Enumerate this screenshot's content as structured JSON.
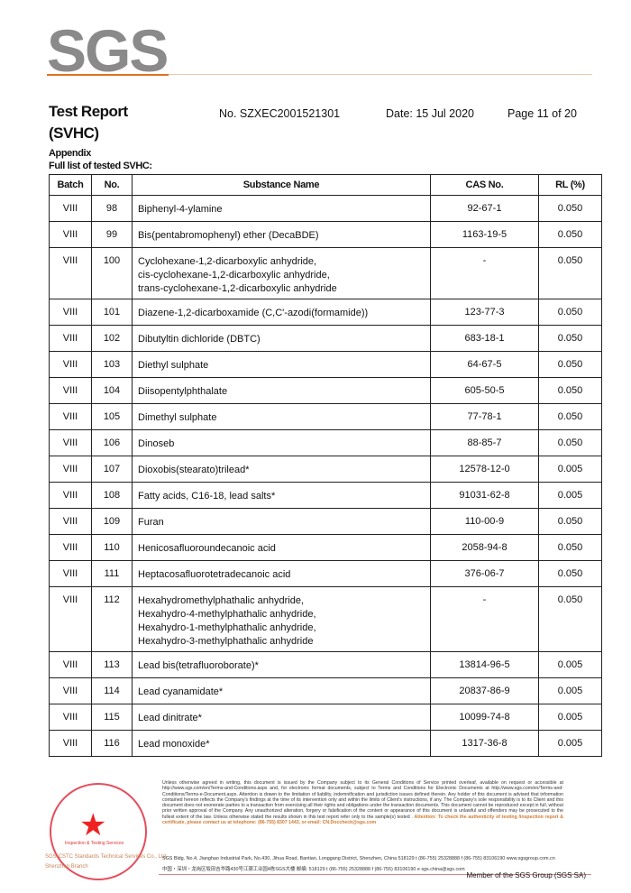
{
  "header": {
    "logo": "SGS",
    "title": "Test Report",
    "subtitle": "(SVHC)",
    "report_no": "No. SZXEC2001521301",
    "date": "Date: 15 Jul 2020",
    "page": "Page 11 of 20",
    "appendix": "Appendix",
    "list_title": "Full list of tested SVHC:"
  },
  "table": {
    "columns": [
      "Batch",
      "No.",
      "Substance Name",
      "CAS No.",
      "RL (%)"
    ],
    "rows": [
      {
        "batch": "VIII",
        "no": "98",
        "name": [
          "Biphenyl-4-ylamine"
        ],
        "cas": "92-67-1",
        "rl": "0.050"
      },
      {
        "batch": "VIII",
        "no": "99",
        "name": [
          "Bis(pentabromophenyl) ether (DecaBDE)"
        ],
        "cas": "1163-19-5",
        "rl": "0.050"
      },
      {
        "batch": "VIII",
        "no": "100",
        "name": [
          "Cyclohexane-1,2-dicarboxylic anhydride,",
          "cis-cyclohexane-1,2-dicarboxylic anhydride,",
          "trans-cyclohexane-1,2-dicarboxylic anhydride"
        ],
        "cas": "-",
        "rl": "0.050"
      },
      {
        "batch": "VIII",
        "no": "101",
        "name": [
          "Diazene-1,2-dicarboxamide (C,C'-azodi(formamide))"
        ],
        "cas": "123-77-3",
        "rl": "0.050"
      },
      {
        "batch": "VIII",
        "no": "102",
        "name": [
          "Dibutyltin dichloride (DBTC)"
        ],
        "cas": "683-18-1",
        "rl": "0.050"
      },
      {
        "batch": "VIII",
        "no": "103",
        "name": [
          "Diethyl sulphate"
        ],
        "cas": "64-67-5",
        "rl": "0.050"
      },
      {
        "batch": "VIII",
        "no": "104",
        "name": [
          "Diisopentylphthalate"
        ],
        "cas": "605-50-5",
        "rl": "0.050"
      },
      {
        "batch": "VIII",
        "no": "105",
        "name": [
          "Dimethyl sulphate"
        ],
        "cas": "77-78-1",
        "rl": "0.050"
      },
      {
        "batch": "VIII",
        "no": "106",
        "name": [
          "Dinoseb"
        ],
        "cas": "88-85-7",
        "rl": "0.050"
      },
      {
        "batch": "VIII",
        "no": "107",
        "name": [
          "Dioxobis(stearato)trilead*"
        ],
        "cas": "12578-12-0",
        "rl": "0.005"
      },
      {
        "batch": "VIII",
        "no": "108",
        "name": [
          "Fatty acids, C16-18, lead salts*"
        ],
        "cas": "91031-62-8",
        "rl": "0.005"
      },
      {
        "batch": "VIII",
        "no": "109",
        "name": [
          "Furan"
        ],
        "cas": "110-00-9",
        "rl": "0.050"
      },
      {
        "batch": "VIII",
        "no": "110",
        "name": [
          "Henicosafluoroundecanoic acid"
        ],
        "cas": "2058-94-8",
        "rl": "0.050"
      },
      {
        "batch": "VIII",
        "no": "111",
        "name": [
          "Heptacosafluorotetradecanoic acid"
        ],
        "cas": "376-06-7",
        "rl": "0.050"
      },
      {
        "batch": "VIII",
        "no": "112",
        "name": [
          "Hexahydromethylphathalic anhydride,",
          "Hexahydro-4-methylphathalic anhydride,",
          "Hexahydro-1-methylphathalic anhydride,",
          "Hexahydro-3-methylphathalic anhydride"
        ],
        "cas": "-",
        "rl": "0.050"
      },
      {
        "batch": "VIII",
        "no": "113",
        "name": [
          "Lead bis(tetrafluoroborate)*"
        ],
        "cas": "13814-96-5",
        "rl": "0.005"
      },
      {
        "batch": "VIII",
        "no": "114",
        "name": [
          "Lead cyanamidate*"
        ],
        "cas": "20837-86-9",
        "rl": "0.005"
      },
      {
        "batch": "VIII",
        "no": "115",
        "name": [
          "Lead dinitrate*"
        ],
        "cas": "10099-74-8",
        "rl": "0.005"
      },
      {
        "batch": "VIII",
        "no": "116",
        "name": [
          "Lead monoxide*"
        ],
        "cas": "1317-36-8",
        "rl": "0.005"
      }
    ]
  },
  "footer": {
    "disclaimer": "Unless otherwise agreed in writing, this document is issued by the Company subject to its General Conditions of Service printed overleaf, available on request or accessible at http://www.sgs.com/en/Terms-and-Conditions.aspx and, for electronic format documents, subject to Terms and Conditions for Electronic Documents at http://www.sgs.com/en/Terms-and-Conditions/Terms-e-Document.aspx. Attention is drawn to the limitation of liability, indemnification and jurisdiction issues defined therein. Any holder of this document is advised that information contained hereon reflects the Company's findings at the time of its intervention only and within the limits of Client's instructions, if any. The Company's sole responsibility is to its Client and this document does not exonerate parties to a transaction from exercising all their rights and obligations under the transaction documents. This document cannot be reproduced except in full, without prior written approval of the Company. Any unauthorized alteration, forgery or falsification of the content or appearance of this document is unlawful and offenders may be prosecuted to the fullest extent of the law. Unless otherwise stated the results shown in this test report refer only to the sample(s) tested .",
    "attention": "Attention: To check the authenticity of testing /inspection report & certificate, please contact us at telephone: (86-755) 8307 1443, or email: CN.Doccheck@sgs.com",
    "address_en": "SGS Bldg. No.4, Jianghao Industrial Park, No.430, Jihua Road, Bantian, Longgang District, Shenzhen, China  518129   t (86-755) 25328888   f (86-755) 83106190   www.sgsgroup.com.cn",
    "address_cn": "中国・深圳・龙岗区坂田吉华路430号江灏工业园4栋SGS大楼   邮编: 518129   t (86-755) 25328888   f (86-755) 83106190   e sgs.china@sgs.com",
    "stamp_text": "Inspection & Testing Services",
    "company": "SGS-CSTC Standards Technical Services Co., Ltd.",
    "branch": "Shenzhen Branch",
    "member": "Member of the SGS Group (SGS SA)"
  }
}
